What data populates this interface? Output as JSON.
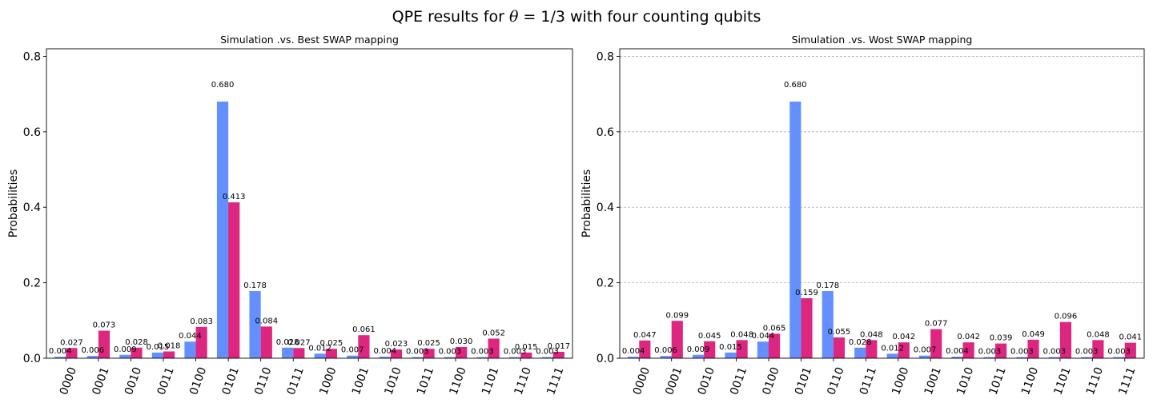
{
  "figure": {
    "title": "QPE results for θ = 1/3 with four counting qubits",
    "title_pre": "QPE results for ",
    "title_theta": "θ",
    "title_eq": " = 1/3",
    "title_post": " with four counting qubits"
  },
  "colors": {
    "simulation": "#648fff",
    "hardware": "#dc267f",
    "grid": "#b0b0b0",
    "axis": "#000000"
  },
  "chart_data": [
    {
      "type": "bar",
      "title": "Simulation .vs. Best SWAP mapping",
      "xlabel": "",
      "ylabel": "Probabilities",
      "ylim": [
        0,
        0.82
      ],
      "yticks": [
        0.0,
        0.2,
        0.4,
        0.6,
        0.8
      ],
      "ytick_labels": [
        "0.0",
        "0.2",
        "0.4",
        "0.6",
        "0.8"
      ],
      "grid": false,
      "categories": [
        "0000",
        "0001",
        "0010",
        "0011",
        "0100",
        "0101",
        "0110",
        "0111",
        "1000",
        "1001",
        "1010",
        "1011",
        "1100",
        "1101",
        "1110",
        "1111"
      ],
      "series": [
        {
          "values": [
            0.004,
            0.006,
            0.009,
            0.015,
            0.044,
            0.68,
            0.178,
            0.028,
            0.012,
            0.007,
            0.004,
            0.003,
            0.003,
            0.003,
            0.003,
            0.003
          ],
          "labels": [
            "0.004",
            "0.006",
            "0.009",
            "0.015",
            "0.044",
            "0.680",
            "0.178",
            "0.028",
            "0.012",
            "0.007",
            "0.004",
            "0.003",
            "0.003",
            "0.003",
            "0.003",
            "0.003"
          ]
        },
        {
          "values": [
            0.027,
            0.073,
            0.028,
            0.018,
            0.083,
            0.413,
            0.084,
            0.027,
            0.025,
            0.061,
            0.023,
            0.025,
            0.03,
            0.052,
            0.015,
            0.017
          ],
          "labels": [
            "0.027",
            "0.073",
            "0.028",
            "0.018",
            "0.083",
            "0.413",
            "0.084",
            "0.027",
            "0.025",
            "0.061",
            "0.023",
            "0.025",
            "0.030",
            "0.052",
            "0.015",
            "0.017"
          ]
        }
      ]
    },
    {
      "type": "bar",
      "title": "Simulation .vs. Wost SWAP mapping",
      "xlabel": "",
      "ylabel": "Probabilities",
      "ylim": [
        0,
        0.82
      ],
      "yticks": [
        0.0,
        0.2,
        0.4,
        0.6,
        0.8
      ],
      "ytick_labels": [
        "0.0",
        "0.2",
        "0.4",
        "0.6",
        "0.8"
      ],
      "grid": true,
      "categories": [
        "0000",
        "0001",
        "0010",
        "0011",
        "0100",
        "0101",
        "0110",
        "0111",
        "1000",
        "1001",
        "1010",
        "1011",
        "1100",
        "1101",
        "1110",
        "1111"
      ],
      "series": [
        {
          "values": [
            0.004,
            0.006,
            0.009,
            0.015,
            0.044,
            0.68,
            0.178,
            0.028,
            0.012,
            0.007,
            0.004,
            0.003,
            0.003,
            0.003,
            0.003,
            0.003
          ],
          "labels": [
            "0.004",
            "0.006",
            "0.009",
            "0.015",
            "0.044",
            "0.680",
            "0.178",
            "0.028",
            "0.012",
            "0.007",
            "0.004",
            "0.003",
            "0.003",
            "0.003",
            "0.003",
            "0.003"
          ]
        },
        {
          "values": [
            0.047,
            0.099,
            0.045,
            0.048,
            0.065,
            0.159,
            0.055,
            0.048,
            0.042,
            0.077,
            0.042,
            0.039,
            0.049,
            0.096,
            0.048,
            0.041
          ],
          "labels": [
            "0.047",
            "0.099",
            "0.045",
            "0.048",
            "0.065",
            "0.159",
            "0.055",
            "0.048",
            "0.042",
            "0.077",
            "0.042",
            "0.039",
            "0.049",
            "0.096",
            "0.048",
            "0.041"
          ]
        }
      ]
    }
  ]
}
